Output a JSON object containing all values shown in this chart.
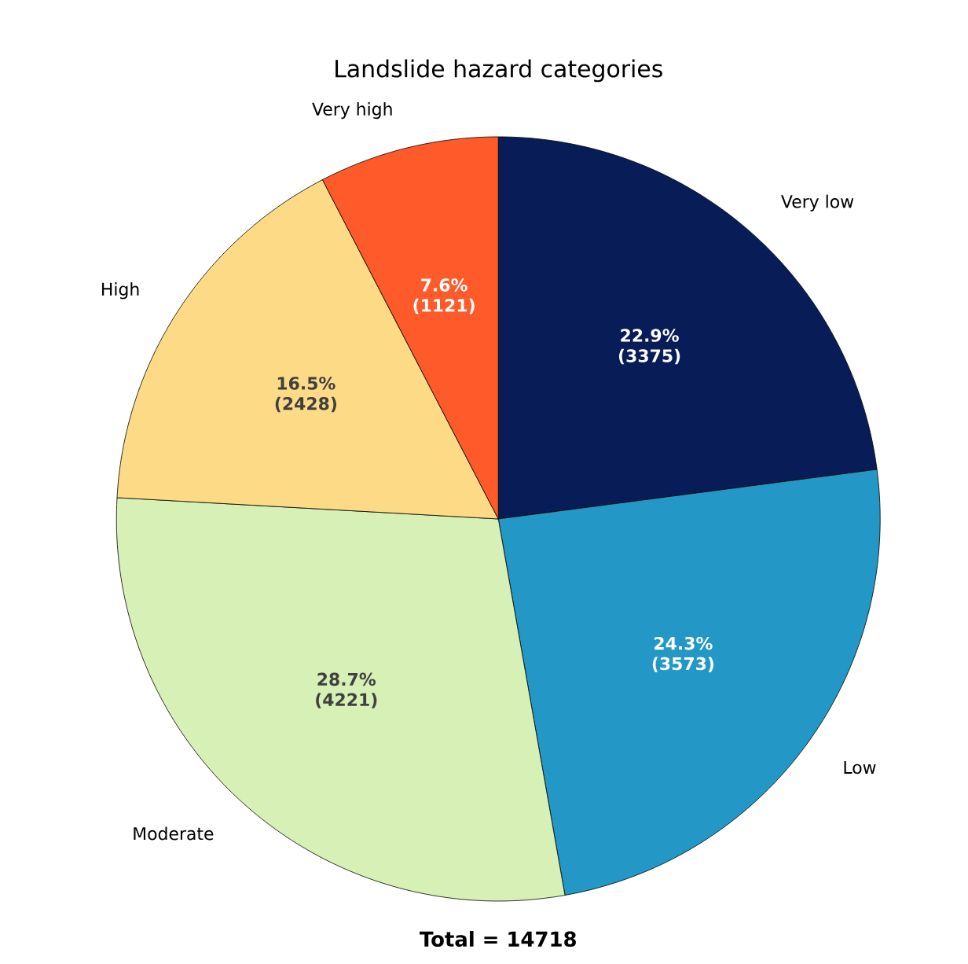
{
  "chart_data": {
    "type": "pie",
    "title": "Landslide hazard categories",
    "categories": [
      "Very low",
      "Low",
      "Moderate",
      "High",
      "Very high"
    ],
    "values": [
      3375,
      3573,
      4221,
      2428,
      1121
    ],
    "colors": [
      "#081d58",
      "#2397c5",
      "#d7f0b6",
      "#fddb86",
      "#fe5a2a"
    ],
    "value_labels": [
      "22.9% (3375)",
      "24.3% (3573)",
      "28.7% (4221)",
      "16.5% (2428)",
      "7.6% (1121)"
    ],
    "annotations": [
      "**Total = 14718**"
    ]
  }
}
